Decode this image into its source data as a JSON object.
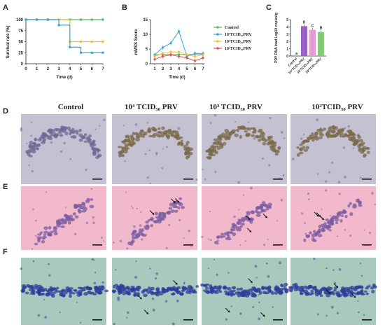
{
  "figure": {
    "panel_labels": {
      "A": "A",
      "B": "B",
      "C": "C",
      "D": "D",
      "E": "E",
      "F": "F"
    },
    "columns": [
      "Control",
      "10⁴ TCID₅₀ PRV",
      "10³ TCID₅₀ PRV",
      "10²TCID₅₀ PRV"
    ],
    "legend_labels": [
      "Control",
      "10⁴TCID₅₀PRV",
      "10³TCID₅₀PRV",
      "10²TCID₅₀PRV"
    ],
    "colors": {
      "control": "#5cb85c",
      "high": "#3ba3dc",
      "mid": "#f0c030",
      "low": "#e05050",
      "barHigh": "#9a62c4",
      "barMid": "#e49ad2",
      "barLow": "#86c97a"
    },
    "tissue": {
      "D": {
        "bg": "#c3c1d2",
        "cell": "#6e6a94",
        "band_dark": "#7b6a4a"
      },
      "E": {
        "bg": "#f2b8cc",
        "cell": "#7a5ca0"
      },
      "F": {
        "bg": "#a8c9bd",
        "cell": "#2e3c9a"
      }
    }
  },
  "chart_data": [
    {
      "type": "line",
      "panel": "A",
      "xlabel": "Time (d)",
      "ylabel": "Survival rate (%)",
      "xlim": [
        0,
        7
      ],
      "ylim": [
        0,
        100
      ],
      "x_ticks": [
        0,
        1,
        2,
        3,
        4,
        5,
        6,
        7
      ],
      "y_ticks": [
        0,
        25,
        50,
        75,
        100
      ],
      "step": true,
      "series": [
        {
          "key": "control",
          "x": [
            0,
            1,
            2,
            3,
            4,
            5,
            6,
            7
          ],
          "values": [
            100,
            100,
            100,
            100,
            100,
            100,
            100,
            100
          ]
        },
        {
          "key": "mid",
          "x": [
            0,
            1,
            2,
            3,
            4,
            5,
            6,
            7
          ],
          "values": [
            100,
            100,
            100,
            100,
            50,
            50,
            50,
            50
          ]
        },
        {
          "key": "high",
          "x": [
            0,
            1,
            2,
            3,
            4,
            5,
            6,
            7
          ],
          "values": [
            100,
            100,
            100,
            87.5,
            37.5,
            25,
            25,
            25
          ]
        }
      ]
    },
    {
      "type": "line",
      "panel": "B",
      "xlabel": "Time (d)",
      "ylabel": "mMSS Score",
      "xlim": [
        1,
        7
      ],
      "ylim": [
        0,
        15
      ],
      "x_ticks": [
        1,
        2,
        3,
        4,
        5,
        6,
        7
      ],
      "y_ticks": [
        0,
        5,
        10,
        15
      ],
      "series": [
        {
          "key": "control",
          "x": [
            1,
            2,
            3,
            4,
            5,
            6,
            7
          ],
          "values": [
            3,
            3.2,
            3.1,
            3.2,
            3,
            3.3,
            3.2
          ]
        },
        {
          "key": "high",
          "x": [
            1,
            2,
            3,
            4,
            5,
            6,
            7
          ],
          "values": [
            3,
            5.5,
            7,
            11,
            2.5,
            3.5,
            3.5
          ]
        },
        {
          "key": "mid",
          "x": [
            1,
            2,
            3,
            4,
            5,
            6,
            7
          ],
          "values": [
            2.5,
            3.5,
            4,
            4,
            3,
            2.5,
            3
          ]
        },
        {
          "key": "low",
          "x": [
            1,
            2,
            3,
            4,
            5,
            6,
            7
          ],
          "values": [
            1.5,
            2.5,
            3,
            2.5,
            2,
            1,
            2
          ]
        }
      ]
    },
    {
      "type": "bar",
      "panel": "C",
      "ylabel": "PRV DNA load\nLog10 copies/g",
      "ylim": [
        0,
        5
      ],
      "y_ticks": [
        0,
        1,
        2,
        3,
        4,
        5
      ],
      "categories": [
        "Control",
        "10⁴TCID₅₀PRV",
        "10³TCID₅₀PRV",
        "10²TCID₅₀PRV"
      ],
      "values": [
        0,
        4.1,
        3.6,
        3.3
      ],
      "letters": [
        "a",
        "D",
        "C",
        "B"
      ]
    }
  ]
}
